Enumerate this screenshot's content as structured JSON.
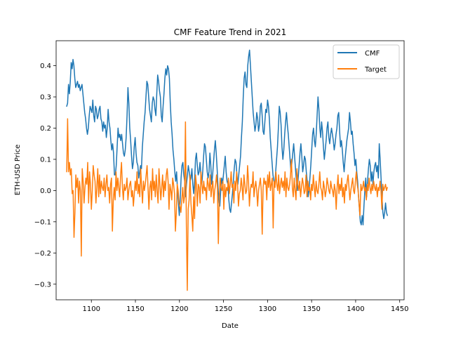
{
  "chart_data": {
    "type": "line",
    "title": "CMF Feature Trend in 2021",
    "xlabel": "Date",
    "ylabel": "ETH-USD Price",
    "xlim": [
      1060,
      1455
    ],
    "ylim": [
      -0.35,
      0.48
    ],
    "xticks": [
      1100,
      1150,
      1200,
      1250,
      1300,
      1350,
      1400,
      1450
    ],
    "yticks": [
      -0.3,
      -0.2,
      -0.1,
      0.0,
      0.1,
      0.2,
      0.3,
      0.4
    ],
    "grid": false,
    "legend": "top-right",
    "x_start": 1072,
    "x_end": 1436,
    "series": [
      {
        "name": "CMF",
        "color": "#1f77b4",
        "values": [
          0.27,
          0.28,
          0.34,
          0.31,
          0.35,
          0.41,
          0.39,
          0.42,
          0.4,
          0.36,
          0.33,
          0.34,
          0.35,
          0.33,
          0.34,
          0.32,
          0.33,
          0.34,
          0.31,
          0.28,
          0.25,
          0.23,
          0.2,
          0.18,
          0.2,
          0.24,
          0.27,
          0.26,
          0.25,
          0.29,
          0.24,
          0.22,
          0.27,
          0.26,
          0.23,
          0.24,
          0.26,
          0.27,
          0.23,
          0.22,
          0.19,
          0.22,
          0.2,
          0.21,
          0.17,
          0.2,
          0.26,
          0.22,
          0.2,
          0.16,
          0.13,
          0.15,
          0.12,
          0.05,
          0.05,
          0.08,
          0.14,
          0.2,
          0.17,
          0.18,
          0.16,
          0.18,
          0.15,
          0.12,
          0.11,
          0.13,
          0.17,
          0.24,
          0.33,
          0.28,
          0.2,
          0.16,
          0.11,
          0.07,
          0.09,
          0.14,
          0.17,
          0.12,
          0.09,
          0.08,
          0.04,
          0.06,
          0.08,
          0.07,
          0.14,
          0.18,
          0.22,
          0.25,
          0.3,
          0.35,
          0.34,
          0.3,
          0.26,
          0.24,
          0.22,
          0.28,
          0.3,
          0.29,
          0.26,
          0.24,
          0.31,
          0.37,
          0.35,
          0.32,
          0.3,
          0.24,
          0.22,
          0.27,
          0.31,
          0.36,
          0.39,
          0.37,
          0.4,
          0.39,
          0.36,
          0.28,
          0.22,
          0.18,
          0.13,
          0.1,
          0.06,
          0.03,
          0.06,
          0.0,
          -0.04,
          -0.08,
          -0.03,
          0.04,
          0.08,
          0.09,
          0.05,
          0.03,
          -0.02,
          0.02,
          0.05,
          0.08,
          0.06,
          0.03,
          0.04,
          0.07,
          0.02,
          -0.01,
          0.03,
          0.1,
          0.12,
          0.08,
          0.05,
          0.06,
          0.09,
          0.05,
          0.02,
          0.06,
          0.11,
          0.15,
          0.14,
          0.1,
          0.06,
          0.04,
          0.06,
          0.12,
          0.08,
          0.02,
          0.05,
          0.09,
          0.13,
          0.16,
          0.12,
          0.07,
          0.01,
          -0.04,
          -0.05,
          0.0,
          0.04,
          0.02,
          0.05,
          0.08,
          0.11,
          0.06,
          0.03,
          0.02,
          -0.03,
          -0.06,
          -0.07,
          -0.04,
          -0.01,
          0.03,
          0.07,
          0.1,
          0.09,
          0.05,
          0.02,
          0.05,
          0.08,
          0.11,
          0.17,
          0.22,
          0.3,
          0.36,
          0.38,
          0.34,
          0.33,
          0.4,
          0.43,
          0.45,
          0.4,
          0.35,
          0.3,
          0.25,
          0.22,
          0.19,
          0.21,
          0.25,
          0.23,
          0.19,
          0.21,
          0.27,
          0.28,
          0.24,
          0.19,
          0.18,
          0.22,
          0.26,
          0.25,
          0.29,
          0.27,
          0.23,
          0.17,
          0.13,
          0.09,
          0.05,
          0.03,
          0.02,
          0.06,
          0.1,
          0.14,
          0.2,
          0.27,
          0.25,
          0.21,
          0.14,
          0.1,
          0.13,
          0.18,
          0.22,
          0.25,
          0.21,
          0.18,
          0.14,
          0.1,
          0.06,
          0.09,
          0.12,
          0.15,
          0.11,
          0.07,
          0.03,
          0.0,
          0.04,
          0.08,
          0.12,
          0.15,
          0.11,
          0.06,
          0.08,
          0.11,
          0.1,
          0.06,
          0.03,
          -0.02,
          0.0,
          0.04,
          0.08,
          0.13,
          0.18,
          0.2,
          0.16,
          0.14,
          0.18,
          0.24,
          0.3,
          0.26,
          0.2,
          0.17,
          0.22,
          0.19,
          0.14,
          0.1,
          0.13,
          0.16,
          0.2,
          0.22,
          0.17,
          0.15,
          0.18,
          0.2,
          0.18,
          0.16,
          0.13,
          0.15,
          0.18,
          0.2,
          0.24,
          0.25,
          0.19,
          0.14,
          0.16,
          0.13,
          0.09,
          0.06,
          0.1,
          0.13,
          0.16,
          0.18,
          0.2,
          0.25,
          0.22,
          0.18,
          0.19,
          0.15,
          0.12,
          0.08,
          0.1,
          0.06,
          0.03,
          -0.02,
          -0.06,
          -0.1,
          -0.11,
          -0.08,
          -0.11,
          -0.05,
          0.0,
          0.04,
          -0.02,
          0.03,
          0.07,
          0.1,
          0.08,
          0.03,
          0.06,
          0.02,
          0.06,
          0.08,
          0.09,
          0.06,
          0.08,
          0.04,
          0.15,
          0.1,
          0.04,
          -0.02,
          -0.07,
          -0.09,
          -0.07,
          -0.04,
          -0.07,
          -0.08
        ]
      },
      {
        "name": "Target",
        "color": "#ff7f0e",
        "values": [
          0.06,
          0.23,
          0.06,
          0.09,
          0.05,
          0.07,
          -0.01,
          0.0,
          -0.15,
          -0.07,
          0.05,
          0.01,
          0.04,
          -0.04,
          0.03,
          0.0,
          -0.21,
          0.07,
          0.03,
          -0.04,
          0.01,
          0.04,
          0.02,
          0.09,
          -0.04,
          0.06,
          0.02,
          -0.06,
          0.0,
          0.08,
          0.05,
          0.03,
          -0.04,
          0.01,
          0.07,
          -0.02,
          0.05,
          -0.01,
          0.03,
          0.01,
          0.0,
          0.04,
          -0.02,
          0.02,
          0.05,
          0.0,
          0.01,
          -0.04,
          0.02,
          0.04,
          -0.13,
          -0.03,
          0.01,
          -0.03,
          0.06,
          0.0,
          0.04,
          0.01,
          -0.02,
          0.05,
          0.09,
          0.01,
          -0.03,
          0.02,
          0.0,
          0.01,
          0.04,
          -0.03,
          0.0,
          0.02,
          0.03,
          -0.02,
          0.0,
          -0.05,
          -0.01,
          0.03,
          0.0,
          0.06,
          -0.01,
          0.02,
          -0.02,
          0.07,
          0.01,
          -0.04,
          0.03,
          0.0,
          0.02,
          0.05,
          0.08,
          0.01,
          -0.06,
          0.01,
          0.03,
          -0.03,
          0.07,
          0.0,
          0.03,
          -0.02,
          0.05,
          0.0,
          -0.04,
          0.07,
          0.02,
          -0.03,
          0.01,
          0.05,
          -0.02,
          0.03,
          0.0,
          0.05,
          0.07,
          0.03,
          -0.06,
          0.02,
          0.0,
          -0.03,
          0.04,
          0.02,
          -0.01,
          -0.13,
          -0.07,
          0.02,
          0.0,
          -0.04,
          -0.05,
          -0.07,
          -0.03,
          0.01,
          -0.04,
          -0.02,
          0.22,
          -0.11,
          -0.32,
          -0.06,
          -0.03,
          0.05,
          -0.04,
          -0.08,
          -0.13,
          -0.02,
          -0.09,
          0.05,
          0.02,
          -0.05,
          0.02,
          0.01,
          -0.04,
          0.06,
          0.02,
          -0.01,
          0.03,
          0.0,
          0.01,
          -0.03,
          0.04,
          0.02,
          0.0,
          0.05,
          -0.02,
          0.01,
          0.03,
          -0.04,
          0.0,
          0.02,
          0.05,
          0.01,
          -0.17,
          -0.02,
          0.04,
          0.01,
          0.0,
          0.03,
          -0.06,
          0.02,
          -0.02,
          0.01,
          0.0,
          0.04,
          -0.01,
          0.02,
          0.06,
          0.01,
          0.02,
          -0.04,
          0.03,
          0.0,
          0.06,
          0.02,
          -0.05,
          -0.01,
          0.0,
          0.04,
          0.01,
          -0.03,
          0.05,
          0.02,
          -0.01,
          0.0,
          0.08,
          0.03,
          -0.05,
          0.0,
          0.02,
          0.01,
          0.06,
          -0.02,
          0.01,
          0.03,
          0.0,
          -0.05,
          0.0,
          0.02,
          0.04,
          0.0,
          -0.14,
          0.01,
          0.04,
          0.02,
          0.03,
          -0.03,
          0.05,
          0.01,
          0.06,
          0.0,
          0.02,
          0.04,
          -0.12,
          0.03,
          0.01,
          0.06,
          0.02,
          0.0,
          0.05,
          -0.01,
          0.02,
          0.04,
          0.01,
          0.03,
          0.0,
          0.06,
          -0.02,
          0.04,
          0.01,
          0.0,
          0.02,
          0.05,
          0.1,
          0.01,
          -0.02,
          0.04,
          0.0,
          -0.03,
          0.07,
          0.02,
          0.0,
          0.03,
          -0.02,
          0.01,
          0.04,
          0.02,
          -0.01,
          0.0,
          0.05,
          -0.02,
          0.03,
          0.0,
          0.01,
          -0.03,
          0.02,
          0.0,
          0.05,
          0.01,
          -0.02,
          0.03,
          0.0,
          -0.01,
          0.02,
          0.06,
          0.01,
          0.0,
          -0.03,
          0.03,
          0.01,
          -0.02,
          0.0,
          0.04,
          0.02,
          0.0,
          -0.01,
          0.03,
          0.01,
          0.0,
          -0.02,
          0.02,
          0.0,
          -0.06,
          0.01,
          0.05,
          -0.01,
          0.02,
          0.0,
          0.04,
          -0.02,
          0.01,
          -0.04,
          0.02,
          0.0,
          0.03,
          0.05,
          0.01,
          -0.03,
          0.0,
          0.02,
          0.04,
          0.0,
          -0.01,
          0.03,
          0.06,
          0.02,
          0.0,
          -0.04,
          -0.08,
          0.02,
          0.0,
          0.01,
          0.03,
          0.0,
          0.01,
          -0.03,
          0.02,
          0.0,
          0.04,
          0.01,
          -0.01,
          0.02,
          0.0,
          0.03,
          0.01,
          0.0,
          0.02,
          -0.02,
          0.01,
          0.0,
          0.03,
          0.0,
          -0.06,
          0.02,
          0.0,
          0.01,
          0.02,
          0.0,
          0.01
        ]
      }
    ]
  }
}
